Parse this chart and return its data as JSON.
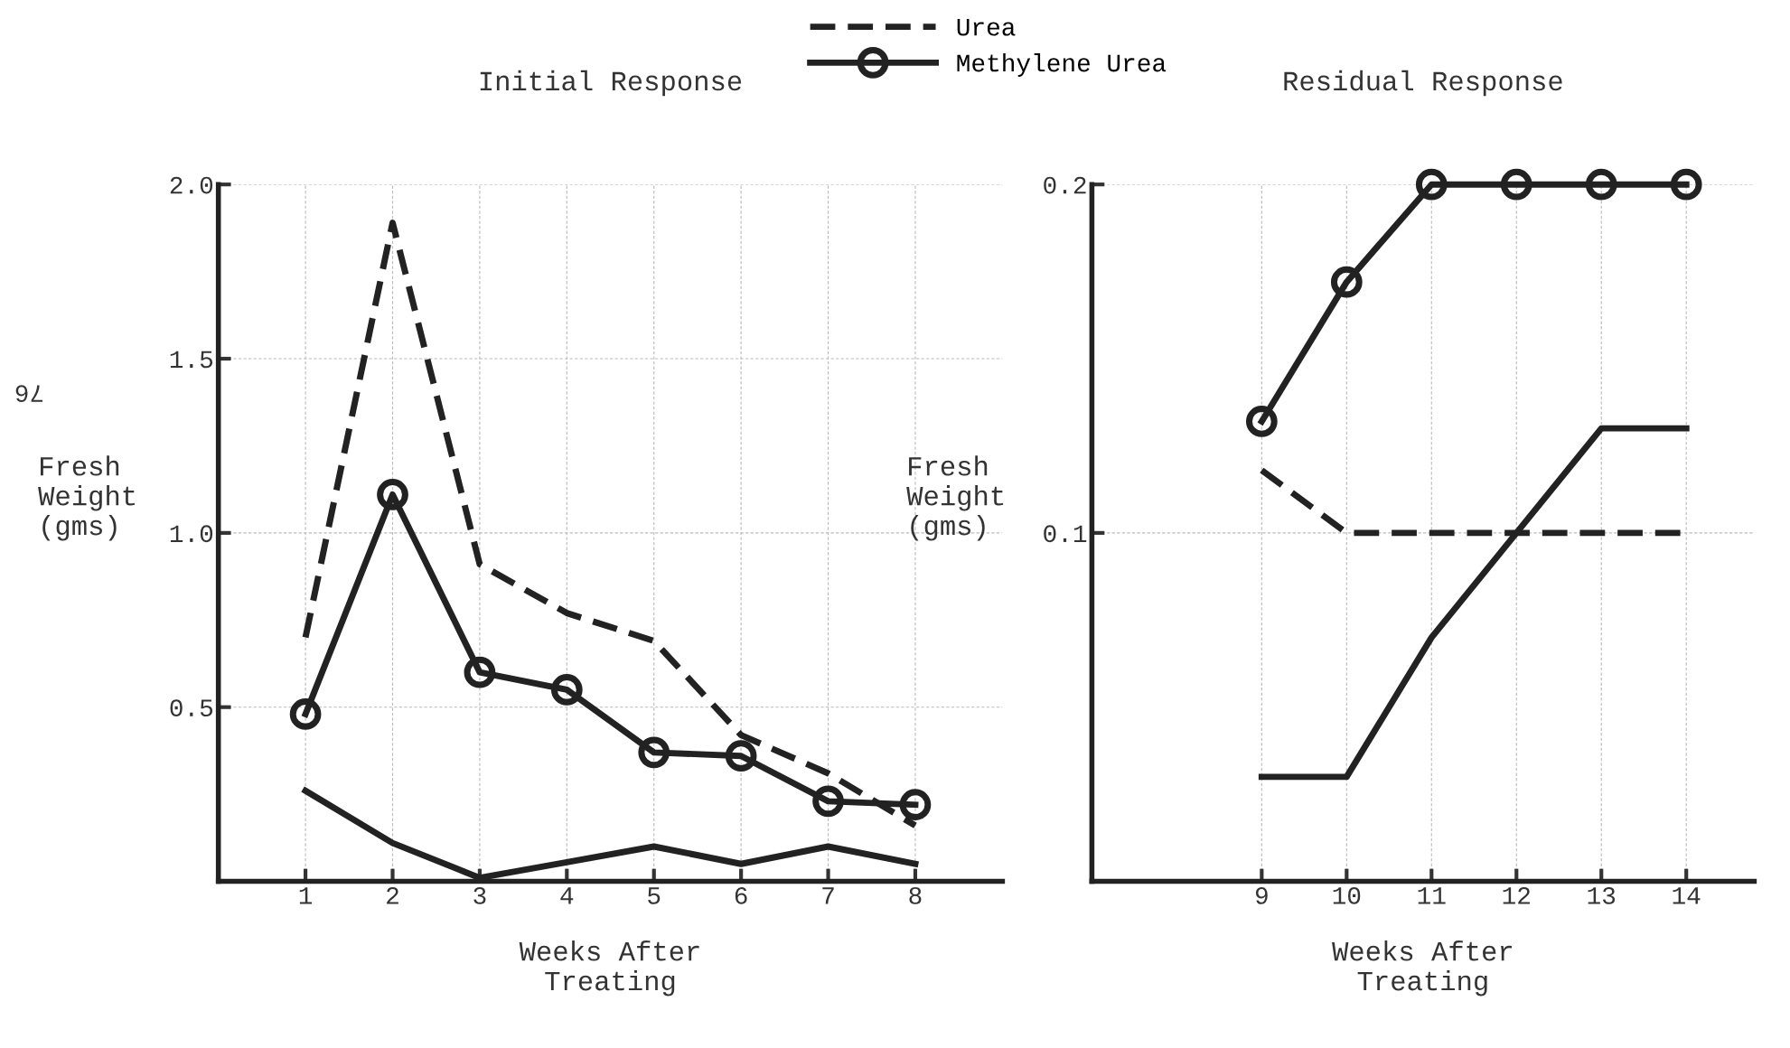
{
  "chart_data": [
    {
      "type": "line",
      "title": "Initial Response",
      "xlabel": "Weeks After\nTreating",
      "ylabel": "Fresh\nWeight\n(gms)",
      "x": [
        1,
        2,
        3,
        4,
        5,
        6,
        7,
        8
      ],
      "xlim": [
        0,
        9
      ],
      "xticks": [
        1,
        2,
        3,
        4,
        5,
        6,
        7,
        8
      ],
      "ylim": [
        0,
        2.0
      ],
      "yticks": [
        {
          "value": 0.5,
          "label": "0.5"
        },
        {
          "value": 1.0,
          "label": "1.0"
        },
        {
          "value": 1.5,
          "label": "1.5"
        },
        {
          "value": 2.0,
          "label": "2.0"
        }
      ],
      "grid": true,
      "legend": "top",
      "annotations": [
        "76"
      ],
      "series": [
        {
          "name": "Urea",
          "color": "#222222",
          "line_style": "dashed",
          "marker": "none",
          "values": [
            0.7,
            1.89,
            0.91,
            0.77,
            0.69,
            0.42,
            0.31,
            0.16
          ]
        },
        {
          "name": "Methylene Urea",
          "color": "#222222",
          "line_style": "solid",
          "marker": "circle",
          "values": [
            0.48,
            1.11,
            0.6,
            0.55,
            0.37,
            0.36,
            0.23,
            0.22
          ]
        },
        {
          "color": "#222222",
          "line_style": "solid",
          "marker": "none",
          "values": [
            0.26,
            0.11,
            0.01,
            0.055,
            0.1,
            0.05,
            0.1,
            0.05
          ]
        }
      ]
    },
    {
      "type": "line",
      "title": "Residual Response",
      "xlabel": "Weeks After\nTreating",
      "ylabel": "Fresh\nWeight\n(gms)",
      "categories": [
        "9",
        "10",
        "11",
        "12",
        "13",
        "14"
      ],
      "ylim": [
        0,
        0.2
      ],
      "yticks": [
        0.1,
        0.2
      ],
      "grid": true,
      "series": [
        {
          "color": "#222222",
          "line_style": "dashed",
          "marker": "none",
          "values": [
            0.118,
            0.1,
            0.1,
            0.1,
            0.1,
            0.1
          ]
        },
        {
          "color": "#222222",
          "line_style": "solid",
          "marker": "circle",
          "values": [
            0.132,
            0.172,
            0.2,
            0.2,
            0.2,
            0.2
          ]
        },
        {
          "color": "#222222",
          "line_style": "solid",
          "marker": "none",
          "values": [
            0.03,
            0.03,
            0.07,
            0.1,
            0.13,
            0.13
          ]
        }
      ]
    }
  ]
}
